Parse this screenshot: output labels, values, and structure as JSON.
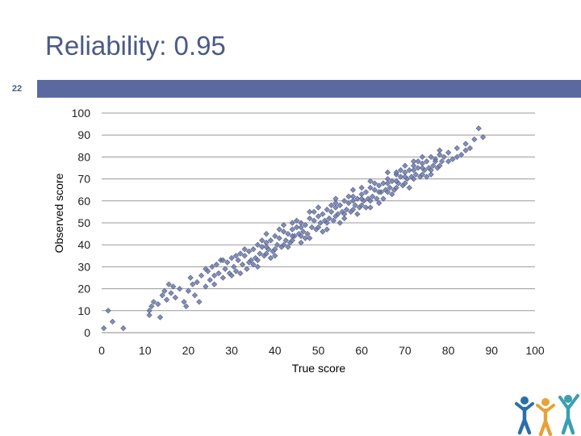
{
  "slide": {
    "title": "Reliability: 0.95",
    "number": "22"
  },
  "colors": {
    "title": "#4a5a86",
    "band": "#5a6aa0",
    "marker": "#6f7aa8",
    "logo_blue": "#2b6fa8",
    "logo_orange": "#e8a13a",
    "logo_teal": "#3a9fb0"
  },
  "logo": {
    "icon": "people-group-icon"
  },
  "chart_data": {
    "type": "scatter",
    "xlabel": "True score",
    "ylabel": "Observed score",
    "xlim": [
      0,
      100
    ],
    "ylim": [
      0,
      100
    ],
    "xticks": [
      0,
      10,
      20,
      30,
      40,
      50,
      60,
      70,
      80,
      90,
      100
    ],
    "yticks": [
      0,
      10,
      20,
      30,
      40,
      50,
      60,
      70,
      80,
      90,
      100
    ],
    "grid": "horizontal",
    "marker": "diamond",
    "points": [
      [
        0.5,
        2
      ],
      [
        1.5,
        10
      ],
      [
        2.5,
        5
      ],
      [
        5,
        2
      ],
      [
        11,
        8
      ],
      [
        11,
        10
      ],
      [
        11.5,
        12
      ],
      [
        12,
        14
      ],
      [
        13,
        13
      ],
      [
        13.5,
        7
      ],
      [
        14,
        17
      ],
      [
        14.5,
        19
      ],
      [
        15,
        15
      ],
      [
        15.5,
        22
      ],
      [
        16,
        18
      ],
      [
        16.5,
        21
      ],
      [
        17,
        16
      ],
      [
        18,
        20
      ],
      [
        19,
        14
      ],
      [
        19.5,
        12
      ],
      [
        20,
        19
      ],
      [
        20.5,
        25
      ],
      [
        21,
        22
      ],
      [
        21.5,
        17
      ],
      [
        22,
        23
      ],
      [
        22.5,
        14
      ],
      [
        23,
        26
      ],
      [
        24,
        21
      ],
      [
        24.5,
        28
      ],
      [
        25,
        24
      ],
      [
        25.5,
        30
      ],
      [
        26,
        22
      ],
      [
        26.5,
        31
      ],
      [
        27,
        27
      ],
      [
        27.5,
        33
      ],
      [
        28,
        25
      ],
      [
        28.5,
        29
      ],
      [
        29,
        32
      ],
      [
        29.5,
        27
      ],
      [
        30,
        34
      ],
      [
        30.5,
        30
      ],
      [
        31,
        28
      ],
      [
        31.5,
        33
      ],
      [
        32,
        36
      ],
      [
        32.5,
        31
      ],
      [
        33,
        35
      ],
      [
        33.5,
        29
      ],
      [
        34,
        37
      ],
      [
        34.5,
        33
      ],
      [
        35,
        38
      ],
      [
        35.5,
        34
      ],
      [
        36,
        40
      ],
      [
        36.5,
        36
      ],
      [
        37,
        39
      ],
      [
        37.5,
        35
      ],
      [
        38,
        41
      ],
      [
        38.5,
        38
      ],
      [
        39,
        42
      ],
      [
        39.5,
        37
      ],
      [
        40,
        44
      ],
      [
        40.5,
        40
      ],
      [
        41,
        43
      ],
      [
        41.5,
        39
      ],
      [
        42,
        46
      ],
      [
        42.5,
        42
      ],
      [
        43,
        45
      ],
      [
        43.5,
        41
      ],
      [
        44,
        47
      ],
      [
        44.5,
        44
      ],
      [
        45,
        48
      ],
      [
        45.5,
        45
      ],
      [
        46,
        50
      ],
      [
        46.5,
        46
      ],
      [
        47,
        49
      ],
      [
        47.5,
        45
      ],
      [
        48,
        52
      ],
      [
        48.5,
        48
      ],
      [
        49,
        51
      ],
      [
        49.5,
        47
      ],
      [
        50,
        53
      ],
      [
        50.5,
        50
      ],
      [
        51,
        54
      ],
      [
        51.5,
        51
      ],
      [
        52,
        56
      ],
      [
        52.5,
        52
      ],
      [
        53,
        55
      ],
      [
        53.5,
        51
      ],
      [
        54,
        57
      ],
      [
        54.5,
        54
      ],
      [
        55,
        58
      ],
      [
        55.5,
        55
      ],
      [
        56,
        60
      ],
      [
        56.5,
        56
      ],
      [
        57,
        59
      ],
      [
        57.5,
        55
      ],
      [
        58,
        62
      ],
      [
        58.5,
        58
      ],
      [
        59,
        61
      ],
      [
        59.5,
        57
      ],
      [
        60,
        63
      ],
      [
        60.5,
        60
      ],
      [
        61,
        64
      ],
      [
        61.5,
        61
      ],
      [
        62,
        66
      ],
      [
        62.5,
        62
      ],
      [
        63,
        65
      ],
      [
        63.5,
        61
      ],
      [
        64,
        67
      ],
      [
        64.5,
        64
      ],
      [
        65,
        68
      ],
      [
        65.5,
        65
      ],
      [
        66,
        70
      ],
      [
        66.5,
        66
      ],
      [
        67,
        69
      ],
      [
        67.5,
        65
      ],
      [
        68,
        72
      ],
      [
        68.5,
        68
      ],
      [
        69,
        71
      ],
      [
        69.5,
        67
      ],
      [
        70,
        73
      ],
      [
        70.5,
        70
      ],
      [
        71,
        74
      ],
      [
        71.5,
        71
      ],
      [
        72,
        76
      ],
      [
        72.5,
        72
      ],
      [
        73,
        75
      ],
      [
        73.5,
        71
      ],
      [
        74,
        77
      ],
      [
        74.5,
        74
      ],
      [
        75,
        78
      ],
      [
        75.5,
        75
      ],
      [
        76,
        80
      ],
      [
        76.5,
        76
      ],
      [
        77,
        79
      ],
      [
        77.5,
        75
      ],
      [
        78,
        81
      ],
      [
        78.5,
        78
      ],
      [
        79,
        80
      ],
      [
        80,
        82
      ],
      [
        81,
        79
      ],
      [
        82,
        84
      ],
      [
        83,
        81
      ],
      [
        84,
        86
      ],
      [
        85,
        84
      ],
      [
        86,
        88
      ],
      [
        87,
        93
      ],
      [
        88,
        89
      ],
      [
        34,
        32
      ],
      [
        36,
        33
      ],
      [
        38,
        36
      ],
      [
        40,
        38
      ],
      [
        44,
        42
      ],
      [
        46,
        44
      ],
      [
        50,
        48
      ],
      [
        52,
        50
      ],
      [
        56,
        54
      ],
      [
        58,
        56
      ],
      [
        60,
        58
      ],
      [
        62,
        60
      ],
      [
        66,
        64
      ],
      [
        68,
        66
      ],
      [
        70,
        68
      ],
      [
        72,
        70
      ],
      [
        74,
        72
      ],
      [
        76,
        74
      ],
      [
        78,
        76
      ],
      [
        38,
        45
      ],
      [
        42,
        49
      ],
      [
        48,
        55
      ],
      [
        54,
        61
      ],
      [
        58,
        65
      ],
      [
        62,
        69
      ],
      [
        66,
        73
      ],
      [
        70,
        76
      ],
      [
        74,
        80
      ],
      [
        78,
        83
      ],
      [
        35,
        31
      ],
      [
        45,
        51
      ],
      [
        55,
        50
      ],
      [
        65,
        61
      ],
      [
        75,
        71
      ],
      [
        33,
        38
      ],
      [
        43,
        39
      ],
      [
        53,
        58
      ],
      [
        63,
        68
      ],
      [
        73,
        78
      ],
      [
        30,
        26
      ],
      [
        41,
        47
      ],
      [
        51,
        46
      ],
      [
        61,
        57
      ],
      [
        71,
        66
      ],
      [
        39,
        34
      ],
      [
        49,
        55
      ],
      [
        59,
        54
      ],
      [
        69,
        74
      ],
      [
        24,
        29
      ],
      [
        26,
        26
      ],
      [
        28,
        33
      ],
      [
        31,
        35
      ],
      [
        37,
        42
      ],
      [
        47,
        43
      ],
      [
        57,
        62
      ],
      [
        67,
        63
      ],
      [
        72,
        78
      ],
      [
        76,
        72
      ],
      [
        80,
        78
      ],
      [
        82,
        80
      ],
      [
        84,
        83
      ],
      [
        44,
        50
      ],
      [
        46,
        41
      ],
      [
        52,
        47
      ],
      [
        54,
        59
      ],
      [
        60,
        66
      ],
      [
        64,
        59
      ],
      [
        68,
        73
      ],
      [
        56,
        52
      ],
      [
        62,
        57
      ],
      [
        50,
        57
      ],
      [
        40,
        35
      ],
      [
        36,
        30
      ],
      [
        32,
        27
      ],
      [
        48,
        43
      ],
      [
        58,
        60
      ],
      [
        66,
        68
      ],
      [
        70,
        71
      ],
      [
        42,
        40
      ],
      [
        38,
        39
      ],
      [
        44,
        44
      ],
      [
        46,
        48
      ],
      [
        54,
        53
      ],
      [
        60,
        61
      ],
      [
        64,
        64
      ],
      [
        68,
        69
      ],
      [
        72,
        74
      ],
      [
        74,
        75
      ],
      [
        77,
        78
      ]
    ]
  }
}
